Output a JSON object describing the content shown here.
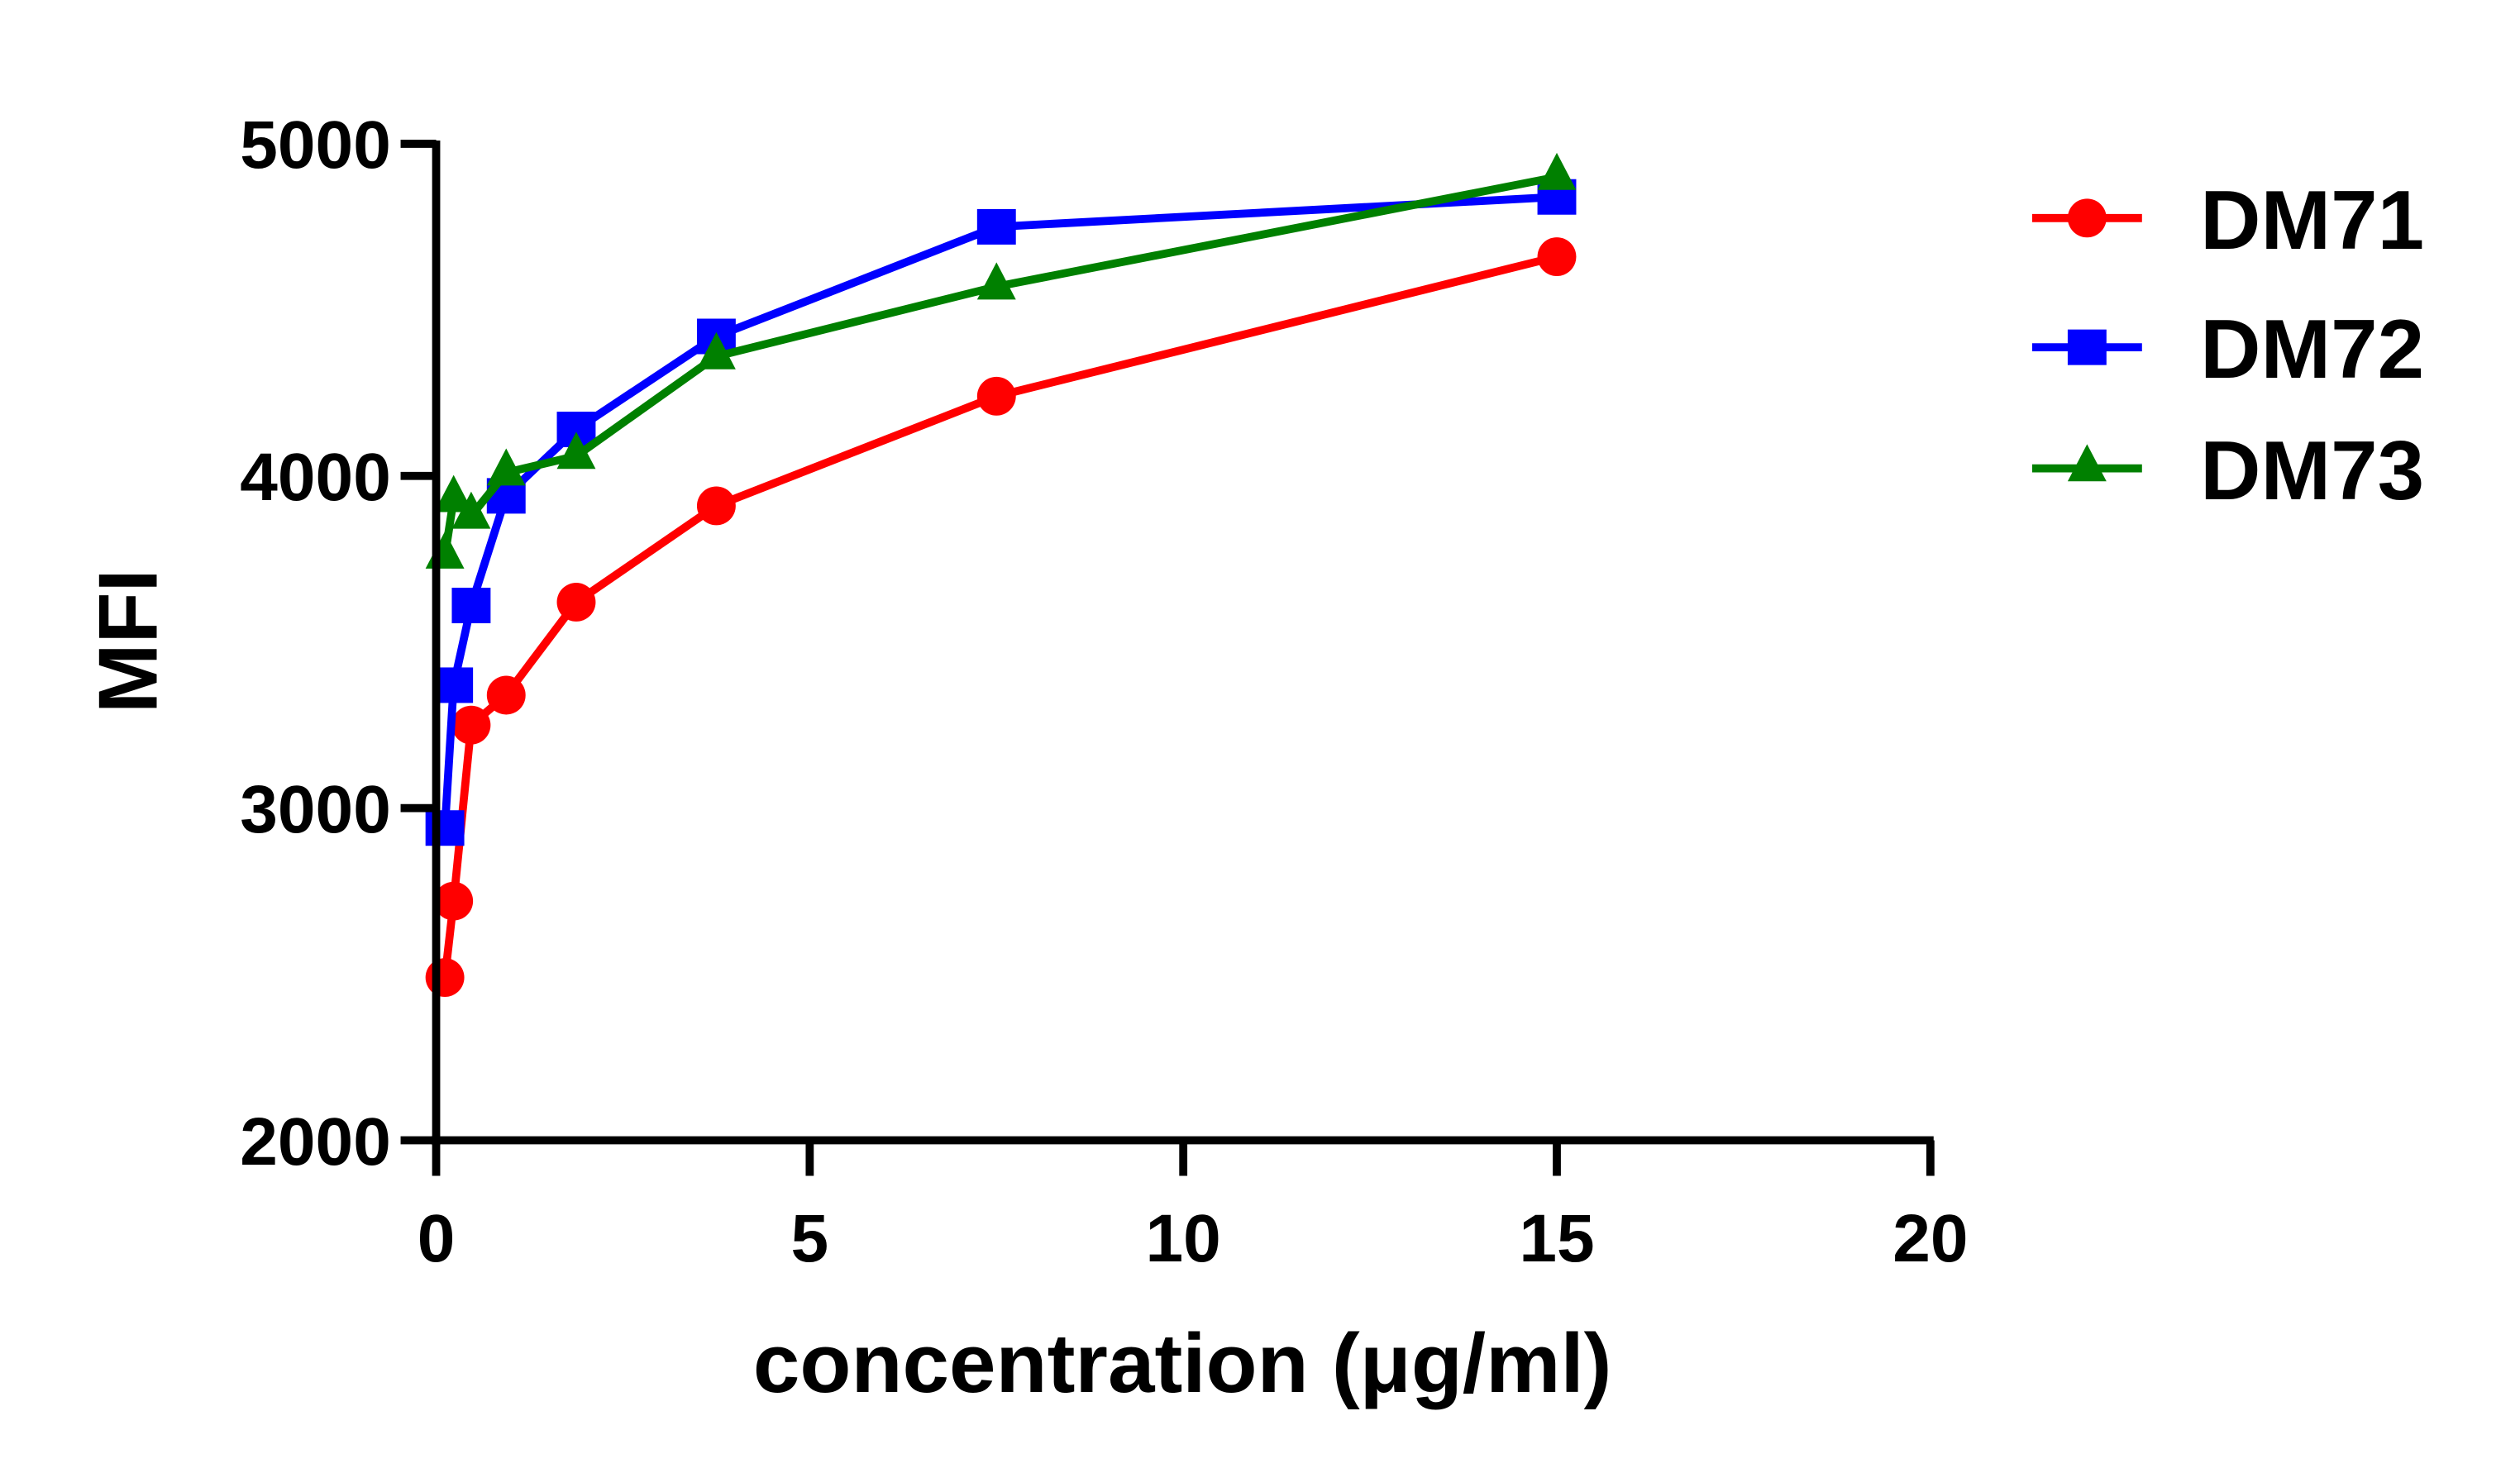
{
  "chart_data": {
    "type": "line",
    "xlabel": "concentration (μg/ml)",
    "ylabel": "MFI",
    "xlim": [
      0,
      20
    ],
    "ylim": [
      2000,
      5000
    ],
    "xticks": [
      "0",
      "5",
      "10",
      "15",
      "20"
    ],
    "yticks": [
      "2000",
      "3000",
      "4000",
      "5000"
    ],
    "grid": false,
    "legend_position": "right",
    "x": [
      0.117,
      0.234,
      0.469,
      0.9375,
      1.875,
      3.75,
      7.5,
      15
    ],
    "series": [
      {
        "name": "DM71",
        "color": "#ff0000",
        "marker": "circle",
        "values": [
          2490,
          2720,
          3250,
          3340,
          3620,
          3910,
          4240,
          4660
        ]
      },
      {
        "name": "DM72",
        "color": "#0000ff",
        "marker": "square",
        "values": [
          2940,
          3370,
          3610,
          3940,
          4140,
          4420,
          4750,
          4840
        ]
      },
      {
        "name": "DM73",
        "color": "#008000",
        "marker": "triangle",
        "values": [
          3760,
          3930,
          3880,
          4010,
          4060,
          4360,
          4570,
          4900
        ]
      }
    ]
  }
}
